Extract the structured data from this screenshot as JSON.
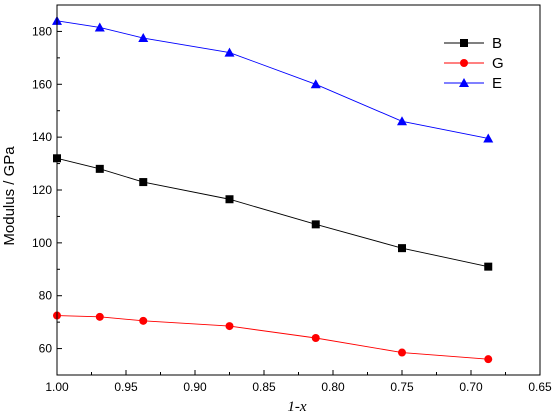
{
  "chart_data": {
    "type": "line",
    "xlabel": "1-x",
    "ylabel": "Modulus / GPa",
    "xlim": [
      1.0,
      0.65
    ],
    "ylim": [
      50,
      190
    ],
    "x_reversed": true,
    "xticks": [
      "1.00",
      "0.95",
      "0.90",
      "0.85",
      "0.80",
      "0.75",
      "0.70",
      "0.65"
    ],
    "yticks": [
      "60",
      "80",
      "100",
      "120",
      "140",
      "160",
      "180"
    ],
    "x": [
      1.0,
      0.969,
      0.9375,
      0.875,
      0.8125,
      0.75,
      0.6875
    ],
    "series": [
      {
        "name": "B",
        "marker": "square",
        "color": "#000000",
        "line_color": "#000000",
        "values": [
          132,
          128,
          123,
          116.5,
          107,
          98,
          91
        ]
      },
      {
        "name": "G",
        "marker": "circle",
        "color": "#ff0000",
        "line_color": "#ff0000",
        "values": [
          72.5,
          72,
          70.5,
          68.5,
          64,
          58.5,
          56
        ]
      },
      {
        "name": "E",
        "marker": "triangle",
        "color": "#0000ff",
        "line_color": "#0000ff",
        "values": [
          184,
          181.5,
          177.5,
          172,
          160,
          146,
          139.5
        ]
      }
    ],
    "legend_position": "top-right",
    "grid": false
  }
}
